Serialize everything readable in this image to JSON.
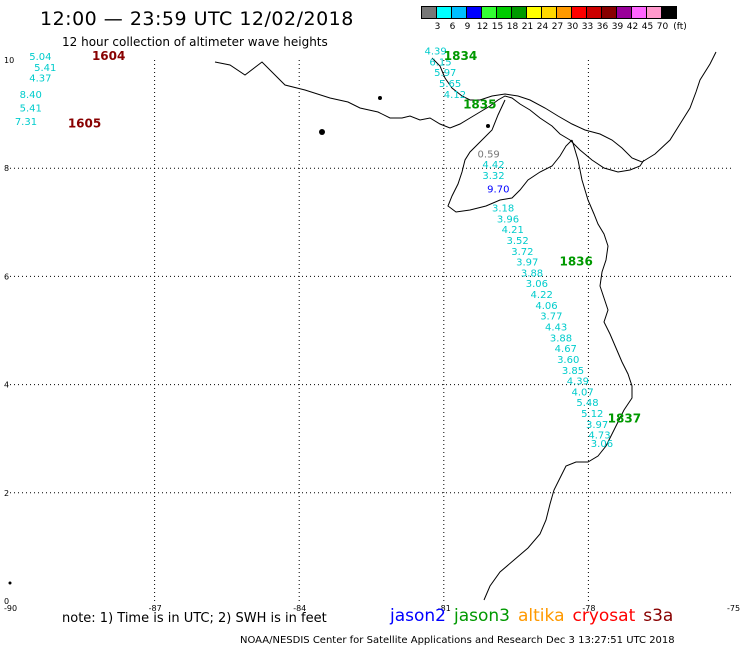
{
  "header": {
    "title": "12:00 — 23:59 UTC 12/02/2018",
    "subtitle": "12 hour collection of altimeter wave heights"
  },
  "colorbar": {
    "unit": "(ft)",
    "swatches": [
      {
        "color": "#777777",
        "label": "3"
      },
      {
        "color": "#00ffff",
        "label": "6"
      },
      {
        "color": "#00bfff",
        "label": "9"
      },
      {
        "color": "#0000ff",
        "label": "12"
      },
      {
        "color": "#33ff33",
        "label": "15"
      },
      {
        "color": "#00cc00",
        "label": "18"
      },
      {
        "color": "#009900",
        "label": "21"
      },
      {
        "color": "#ffff00",
        "label": "24"
      },
      {
        "color": "#ffd700",
        "label": "27"
      },
      {
        "color": "#ff9900",
        "label": "30"
      },
      {
        "color": "#ff0000",
        "label": "33"
      },
      {
        "color": "#cc0000",
        "label": "36"
      },
      {
        "color": "#880000",
        "label": "39"
      },
      {
        "color": "#990099",
        "label": "42"
      },
      {
        "color": "#ff66ff",
        "label": "45"
      },
      {
        "color": "#ff99cc",
        "label": "70"
      },
      {
        "color": "#000000",
        "label": ""
      }
    ]
  },
  "axes": {
    "lat_ticks": [
      10,
      8,
      6,
      4,
      2,
      0
    ],
    "lon_ticks": [
      -90,
      -87,
      -84,
      -81,
      -78,
      -75
    ]
  },
  "passes": [
    {
      "label": "1604",
      "color": "#880000",
      "lon": -88.3,
      "lat": 10.0
    },
    {
      "label": "1605",
      "color": "#880000",
      "lon": -88.8,
      "lat": 8.75
    },
    {
      "label": "1834",
      "color": "#009900",
      "lon": -81.0,
      "lat": 10.0
    },
    {
      "label": "1835",
      "color": "#009900",
      "lon": -80.6,
      "lat": 9.1
    },
    {
      "label": "1836",
      "color": "#009900",
      "lon": -78.6,
      "lat": 6.2
    },
    {
      "label": "1837",
      "color": "#009900",
      "lon": -77.6,
      "lat": 3.3
    }
  ],
  "wave_heights": [
    {
      "v": "5.04",
      "color": "#00cccc",
      "lon": -89.6,
      "lat": 10.0
    },
    {
      "v": "5.41",
      "color": "#00cccc",
      "lon": -89.5,
      "lat": 9.8
    },
    {
      "v": "4.37",
      "color": "#00cccc",
      "lon": -89.6,
      "lat": 9.6
    },
    {
      "v": "8.40",
      "color": "#00cccc",
      "lon": -89.8,
      "lat": 9.3
    },
    {
      "v": "5.41",
      "color": "#00cccc",
      "lon": -89.8,
      "lat": 9.05
    },
    {
      "v": "7.31",
      "color": "#00cccc",
      "lon": -89.9,
      "lat": 8.8
    },
    {
      "v": "4.39",
      "color": "#00cccc",
      "lon": -81.4,
      "lat": 10.1
    },
    {
      "v": "6.15",
      "color": "#00cccc",
      "lon": -81.3,
      "lat": 9.9
    },
    {
      "v": "5.97",
      "color": "#00cccc",
      "lon": -81.2,
      "lat": 9.7
    },
    {
      "v": "5.65",
      "color": "#00cccc",
      "lon": -81.1,
      "lat": 9.5
    },
    {
      "v": "4.12",
      "color": "#00cccc",
      "lon": -81.0,
      "lat": 9.3
    },
    {
      "v": "0.59",
      "color": "#777777",
      "lon": -80.3,
      "lat": 8.2
    },
    {
      "v": "4.42",
      "color": "#00cccc",
      "lon": -80.2,
      "lat": 8.0
    },
    {
      "v": "3.32",
      "color": "#00cccc",
      "lon": -80.2,
      "lat": 7.8
    },
    {
      "v": "9.70",
      "color": "#0000ff",
      "lon": -80.1,
      "lat": 7.55
    },
    {
      "v": "3.18",
      "color": "#00cccc",
      "lon": -80.0,
      "lat": 7.2
    },
    {
      "v": "3.96",
      "color": "#00cccc",
      "lon": -79.9,
      "lat": 7.0
    },
    {
      "v": "4.21",
      "color": "#00cccc",
      "lon": -79.8,
      "lat": 6.8
    },
    {
      "v": "3.52",
      "color": "#00cccc",
      "lon": -79.7,
      "lat": 6.6
    },
    {
      "v": "3.72",
      "color": "#00cccc",
      "lon": -79.6,
      "lat": 6.4
    },
    {
      "v": "3.97",
      "color": "#00cccc",
      "lon": -79.5,
      "lat": 6.2
    },
    {
      "v": "3.88",
      "color": "#00cccc",
      "lon": -79.4,
      "lat": 6.0
    },
    {
      "v": "3.06",
      "color": "#00cccc",
      "lon": -79.3,
      "lat": 5.8
    },
    {
      "v": "4.22",
      "color": "#00cccc",
      "lon": -79.2,
      "lat": 5.6
    },
    {
      "v": "4.06",
      "color": "#00cccc",
      "lon": -79.1,
      "lat": 5.4
    },
    {
      "v": "3.77",
      "color": "#00cccc",
      "lon": -79.0,
      "lat": 5.2
    },
    {
      "v": "4.43",
      "color": "#00cccc",
      "lon": -78.9,
      "lat": 5.0
    },
    {
      "v": "3.88",
      "color": "#00cccc",
      "lon": -78.8,
      "lat": 4.8
    },
    {
      "v": "4.67",
      "color": "#00cccc",
      "lon": -78.7,
      "lat": 4.6
    },
    {
      "v": "3.60",
      "color": "#00cccc",
      "lon": -78.65,
      "lat": 4.4
    },
    {
      "v": "3.85",
      "color": "#00cccc",
      "lon": -78.55,
      "lat": 4.2
    },
    {
      "v": "4.39",
      "color": "#00cccc",
      "lon": -78.45,
      "lat": 4.0
    },
    {
      "v": "4.07",
      "color": "#00cccc",
      "lon": -78.35,
      "lat": 3.8
    },
    {
      "v": "5.48",
      "color": "#00cccc",
      "lon": -78.25,
      "lat": 3.6
    },
    {
      "v": "5.12",
      "color": "#00cccc",
      "lon": -78.15,
      "lat": 3.4
    },
    {
      "v": "3.97",
      "color": "#00cccc",
      "lon": -78.05,
      "lat": 3.2
    },
    {
      "v": "4.73",
      "color": "#00cccc",
      "lon": -78.0,
      "lat": 3.0
    },
    {
      "v": "3.06",
      "color": "#00cccc",
      "lon": -77.95,
      "lat": 2.85
    }
  ],
  "note": "note: 1) Time is in UTC; 2) SWH is in feet",
  "legend": [
    {
      "name": "jason2",
      "color": "#0000ff"
    },
    {
      "name": "jason3",
      "color": "#009900"
    },
    {
      "name": "altika",
      "color": "#ff9900"
    },
    {
      "name": "cryosat",
      "color": "#ff0000"
    },
    {
      "name": "s3a",
      "color": "#880000"
    }
  ],
  "footer": "NOAA/NESDIS Center for Satellite Applications and Research    Dec  3 13:27:51 UTC 2018"
}
